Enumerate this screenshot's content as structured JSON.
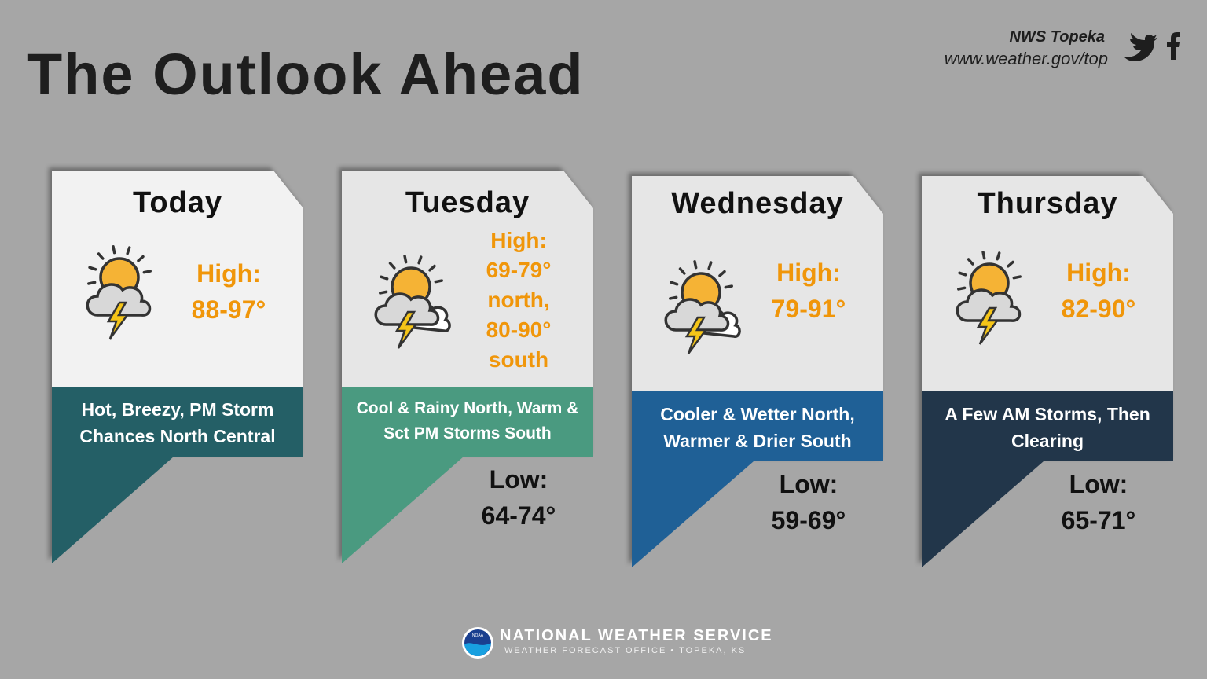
{
  "header": {
    "title": "The Outlook Ahead",
    "office": "NWS Topeka",
    "url": "www.weather.gov/top"
  },
  "cards": [
    {
      "day": "Today",
      "high_label": "High:",
      "high": "88-97°",
      "summary": "Hot, Breezy, PM Storm Chances North Central",
      "color": "#245f66"
    },
    {
      "day": "Tuesday",
      "high_label": "High:",
      "high": "69-79° north, 80-90° south",
      "summary": "Cool & Rainy North, Warm & Sct PM Storms South",
      "low_label": "Low:",
      "low": "64-74°",
      "color": "#4a9a80"
    },
    {
      "day": "Wednesday",
      "high_label": "High:",
      "high": "79-91°",
      "summary": "Cooler & Wetter North, Warmer & Drier South",
      "low_label": "Low:",
      "low": "59-69°",
      "color": "#1f6096"
    },
    {
      "day": "Thursday",
      "high_label": "High:",
      "high": "82-90°",
      "summary": "A Few AM Storms, Then Clearing",
      "low_label": "Low:",
      "low": "65-71°",
      "color": "#22364a"
    }
  ],
  "footer": {
    "logo": "NOAA",
    "agency": "NATIONAL WEATHER SERVICE",
    "office": "WEATHER FORECAST OFFICE • TOPEKA, KS"
  }
}
